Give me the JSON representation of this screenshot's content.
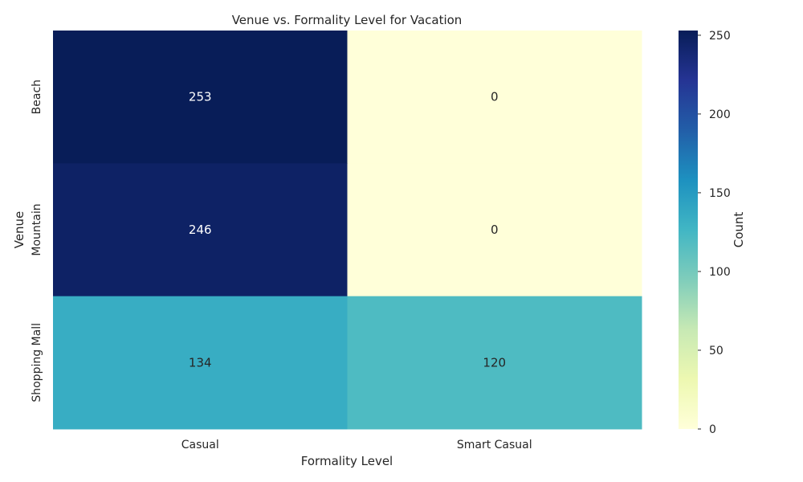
{
  "chart_data": {
    "type": "heatmap",
    "title": "Venue vs. Formality Level for Vacation",
    "xlabel": "Formality Level",
    "ylabel": "Venue",
    "x_categories": [
      "Casual",
      "Smart Casual"
    ],
    "y_categories": [
      "Beach",
      "Mountain",
      "Shopping Mall"
    ],
    "values": [
      [
        253,
        0
      ],
      [
        246,
        0
      ],
      [
        134,
        120
      ]
    ],
    "colorbar": {
      "label": "Count",
      "min": 0,
      "max": 253,
      "ticks": [
        "0",
        "50",
        "100",
        "150",
        "200",
        "250"
      ],
      "colormap": "YlGnBu"
    },
    "grid": false,
    "legend": "right"
  }
}
